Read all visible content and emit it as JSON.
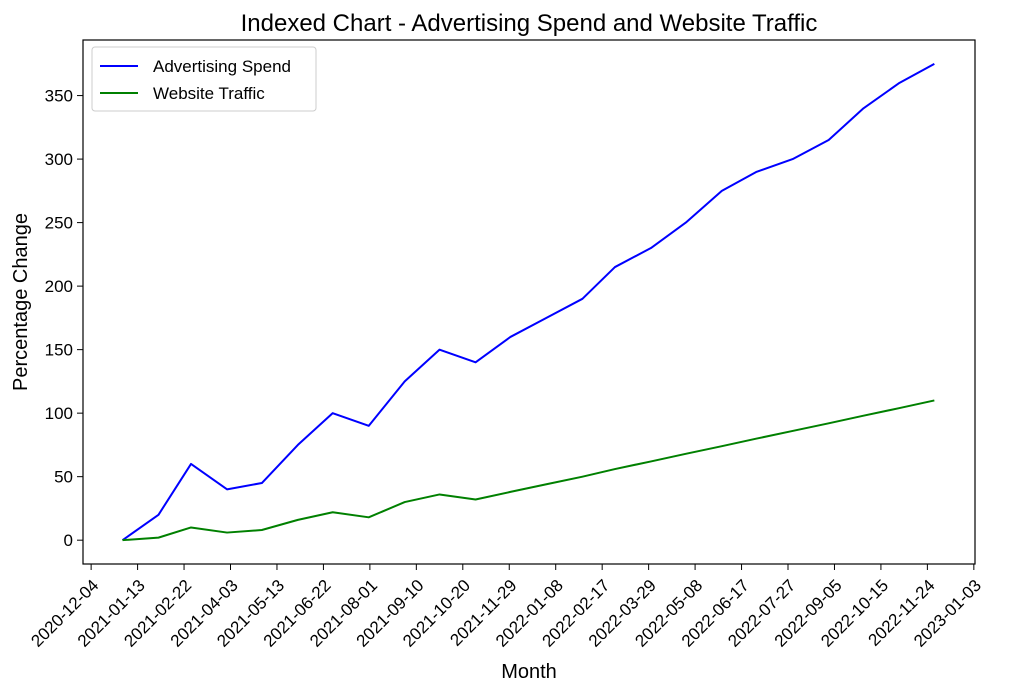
{
  "chart_data": {
    "type": "line",
    "title": "Indexed Chart - Advertising Spend and Website Traffic",
    "xlabel": "Month",
    "ylabel": "Percentage Change",
    "x": [
      "2020-12-31",
      "2021-01-31",
      "2021-02-28",
      "2021-03-31",
      "2021-04-30",
      "2021-05-31",
      "2021-06-30",
      "2021-07-31",
      "2021-08-31",
      "2021-09-30",
      "2021-10-31",
      "2021-11-30",
      "2021-12-31",
      "2022-01-31",
      "2022-02-28",
      "2022-03-31",
      "2022-04-30",
      "2022-05-31",
      "2022-06-30",
      "2022-07-31",
      "2022-08-31",
      "2022-09-30",
      "2022-10-31",
      "2022-11-30"
    ],
    "series": [
      {
        "name": "Advertising Spend",
        "color": "#0000ff",
        "values": [
          0,
          20,
          60,
          40,
          45,
          75,
          100,
          90,
          125,
          150,
          140,
          160,
          175,
          190,
          215,
          230,
          250,
          275,
          290,
          300,
          315,
          340,
          360,
          375
        ]
      },
      {
        "name": "Website Traffic",
        "color": "#008000",
        "values": [
          0,
          2,
          10,
          6,
          8,
          16,
          22,
          18,
          30,
          36,
          32,
          38,
          44,
          50,
          56,
          62,
          68,
          74,
          80,
          86,
          92,
          98,
          104,
          110
        ]
      }
    ],
    "xticks": [
      "2020-12-04",
      "2021-01-13",
      "2021-02-22",
      "2021-04-03",
      "2021-05-13",
      "2021-06-22",
      "2021-08-01",
      "2021-09-10",
      "2021-10-20",
      "2021-11-29",
      "2022-01-08",
      "2022-02-17",
      "2022-03-29",
      "2022-05-08",
      "2022-06-17",
      "2022-07-27",
      "2022-09-05",
      "2022-10-15",
      "2022-11-24",
      "2023-01-03"
    ],
    "yticks": [
      0,
      50,
      100,
      150,
      200,
      250,
      300,
      350
    ],
    "xlim": [
      "2020-11-27",
      "2023-01-04"
    ],
    "ylim": [
      -18.75,
      393.75
    ],
    "grid": false,
    "legend": "top-left"
  }
}
